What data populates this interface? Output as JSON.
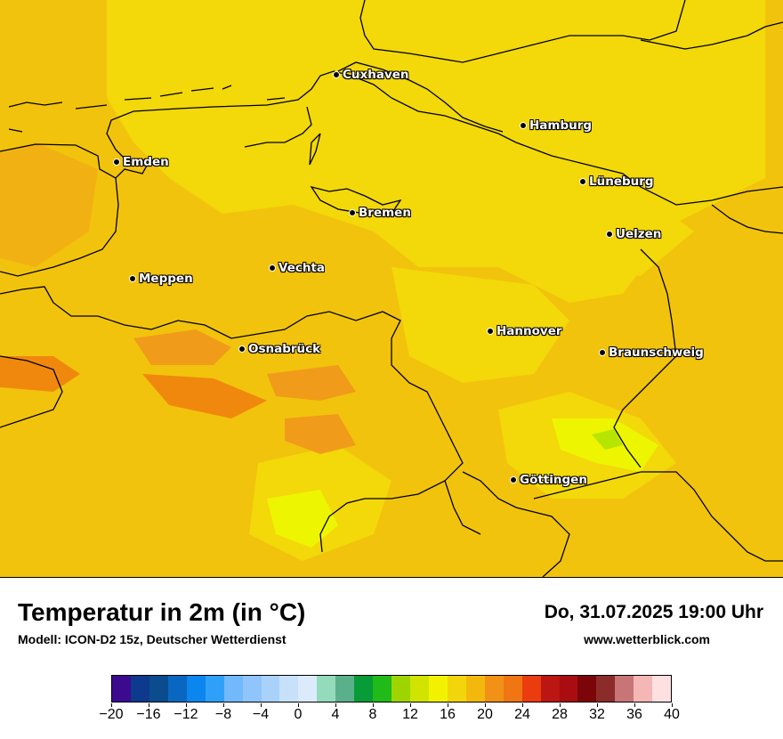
{
  "map": {
    "cities": [
      {
        "name": "Cuxhaven"
      },
      {
        "name": "Hamburg"
      },
      {
        "name": "Emden"
      },
      {
        "name": "Lüneburg"
      },
      {
        "name": "Bremen"
      },
      {
        "name": "Uelzen"
      },
      {
        "name": "Vechta"
      },
      {
        "name": "Meppen"
      },
      {
        "name": "Hannover"
      },
      {
        "name": "Osnabrück"
      },
      {
        "name": "Braunschweig"
      },
      {
        "name": "Göttingen"
      }
    ],
    "colors": {
      "base": "#f2c30c",
      "warm": "#f3d80a",
      "hot": "#f19b1a",
      "hotter": "#f0880e",
      "cool": "#eef500",
      "coolest": "#b5e500"
    }
  },
  "header": {
    "title": "Temperatur in 2m (in °C)",
    "model": "Modell: ICON-D2 15z, Deutscher Wetterdienst",
    "datetime": "Do, 31.07.2025 19:00 Uhr",
    "website": "www.wetterblick.com"
  },
  "legend": {
    "ticks": [
      "−20",
      "−16",
      "−12",
      "−8",
      "−4",
      "0",
      "4",
      "8",
      "12",
      "16",
      "20",
      "24",
      "28",
      "32",
      "36",
      "40"
    ],
    "colors": [
      "#3b0a8f",
      "#0d3a8c",
      "#0a4c8e",
      "#0a67c1",
      "#0a86ee",
      "#2fa0f7",
      "#72b9fb",
      "#8fc5fb",
      "#a9d2fb",
      "#c7e1fb",
      "#dbebfb",
      "#93dbbb",
      "#5bb08c",
      "#079c37",
      "#20bb18",
      "#9ed500",
      "#d0e400",
      "#f2f200",
      "#f3d50b",
      "#f3b80c",
      "#f19116",
      "#f07513",
      "#ea3c0e",
      "#bb1612",
      "#a90d12",
      "#7c0509",
      "#8c2c2a",
      "#c77577",
      "#f5b7b5",
      "#fee0e0"
    ]
  }
}
